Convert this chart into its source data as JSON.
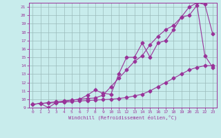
{
  "xlabel": "Windchill (Refroidissement éolien,°C)",
  "bg_color": "#c8ecec",
  "line_color": "#993399",
  "grid_color": "#9bbaba",
  "xlim": [
    -0.5,
    23.5
  ],
  "ylim": [
    9,
    21.5
  ],
  "xticks": [
    0,
    1,
    2,
    3,
    4,
    5,
    6,
    7,
    8,
    9,
    10,
    11,
    12,
    13,
    14,
    15,
    16,
    17,
    18,
    19,
    20,
    21,
    22,
    23
  ],
  "yticks": [
    9,
    10,
    11,
    12,
    13,
    14,
    15,
    16,
    17,
    18,
    19,
    20,
    21
  ],
  "line1_x": [
    0,
    1,
    2,
    3,
    4,
    5,
    6,
    7,
    8,
    9,
    10,
    11,
    12,
    13,
    14,
    15,
    16,
    17,
    18,
    19,
    20,
    21,
    22,
    23
  ],
  "line1_y": [
    9.4,
    9.5,
    9.55,
    9.6,
    9.65,
    9.7,
    9.8,
    9.85,
    9.9,
    9.95,
    10.0,
    10.1,
    10.2,
    10.4,
    10.6,
    11.0,
    11.5,
    12.0,
    12.5,
    13.0,
    13.5,
    13.8,
    14.0,
    14.0
  ],
  "line2_x": [
    0,
    1,
    2,
    3,
    4,
    5,
    6,
    7,
    8,
    9,
    10,
    11,
    12,
    13,
    14,
    15,
    16,
    17,
    18,
    19,
    20,
    21,
    22,
    23
  ],
  "line2_y": [
    9.4,
    9.5,
    9.0,
    9.6,
    9.7,
    9.9,
    10.0,
    10.5,
    11.1,
    10.7,
    10.6,
    13.0,
    15.0,
    15.0,
    16.7,
    15.0,
    16.7,
    17.0,
    18.3,
    19.8,
    20.0,
    21.2,
    15.2,
    13.8
  ],
  "line3_x": [
    0,
    1,
    2,
    3,
    4,
    5,
    6,
    7,
    8,
    9,
    10,
    11,
    12,
    13,
    14,
    15,
    16,
    17,
    18,
    19,
    20,
    21,
    22,
    23
  ],
  "line3_y": [
    9.4,
    9.5,
    9.6,
    9.7,
    9.8,
    9.9,
    10.0,
    10.1,
    10.15,
    10.5,
    11.5,
    12.5,
    13.5,
    14.5,
    15.2,
    16.5,
    17.5,
    18.3,
    18.8,
    19.8,
    21.0,
    21.5,
    21.3,
    17.8
  ]
}
